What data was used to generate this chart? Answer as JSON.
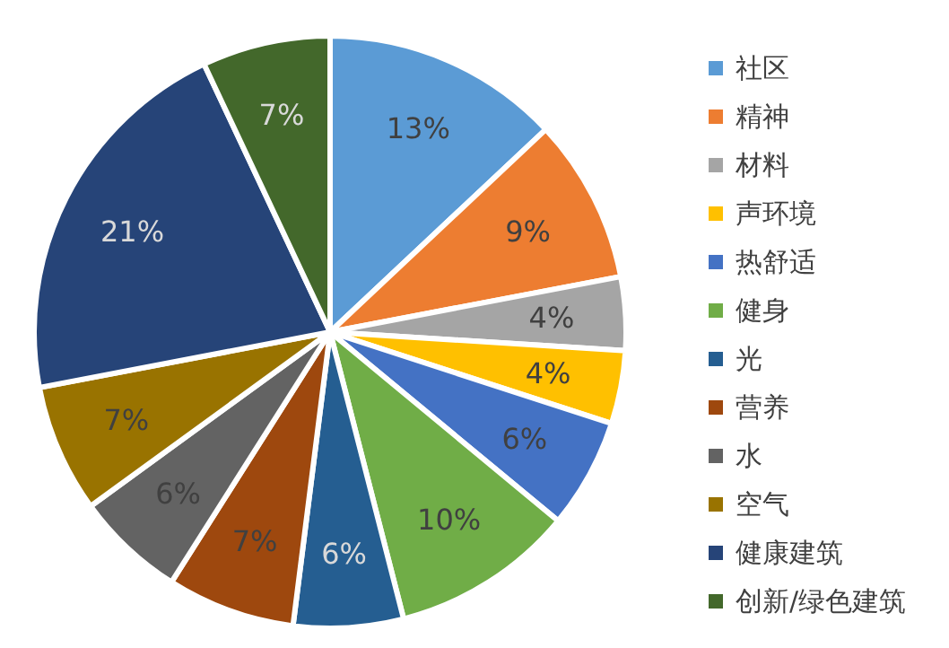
{
  "chart_data": {
    "type": "pie",
    "categories": [
      "社区",
      "精神",
      "材料",
      "声环境",
      "热舒适",
      "健身",
      "光",
      "营养",
      "水",
      "空气",
      "健康建筑",
      "创新/绿色建筑"
    ],
    "values": [
      13,
      9,
      4,
      4,
      6,
      10,
      6,
      7,
      6,
      7,
      21,
      7
    ],
    "colors": [
      "#5b9bd5",
      "#ed7d31",
      "#a5a5a5",
      "#ffc000",
      "#4472c4",
      "#70ad47",
      "#255e91",
      "#9e480e",
      "#636363",
      "#997300",
      "#264478",
      "#43682b"
    ],
    "value_labels": [
      "13%",
      "9%",
      "4%",
      "4%",
      "6%",
      "10%",
      "6%",
      "7%",
      "6%",
      "7%",
      "21%",
      "7%"
    ],
    "legend": "right"
  }
}
